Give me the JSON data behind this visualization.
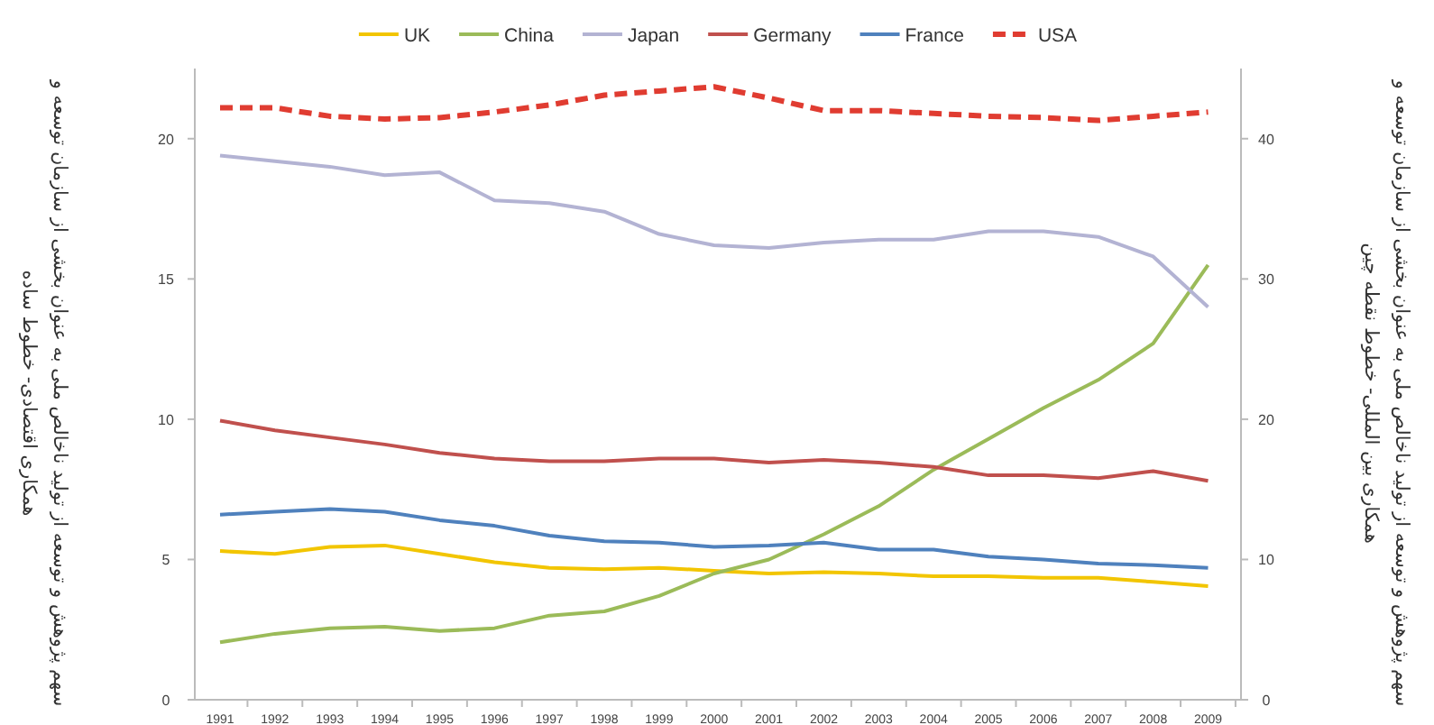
{
  "chart_data": {
    "type": "line",
    "ylabel": "سهم پژوهش و توسعه از تولید ناخالص ملی به عنوان بخشی از سازمان توسعه و همکاری اقتصادی- خطوط ساده",
    "y2label": "سهم پژوهش و توسعه از تولید ناخالص ملی به عنوان بخشی از سازمان توسعه و همکاری بین المللی- خطوط نقطه چین",
    "categories": [
      "1991",
      "1992",
      "1993",
      "1994",
      "1995",
      "1996",
      "1997",
      "1998",
      "1999",
      "2000",
      "2001",
      "2002",
      "2003",
      "2004",
      "2005",
      "2006",
      "2007",
      "2008",
      "2009"
    ],
    "ylim": [
      0,
      22.5
    ],
    "yticks": [
      0,
      5,
      10,
      15,
      20
    ],
    "y2lim": [
      0,
      45
    ],
    "y2ticks": [
      0,
      10,
      20,
      30,
      40
    ],
    "legend": "top",
    "grid": false,
    "marker": "none",
    "series": [
      {
        "name": "UK",
        "color": "#f2c500",
        "values": [
          5.3,
          5.2,
          5.45,
          5.5,
          5.2,
          4.9,
          4.7,
          4.65,
          4.7,
          4.6,
          4.5,
          4.55,
          4.5,
          4.4,
          4.4,
          4.35,
          4.35,
          4.2,
          4.05
        ]
      },
      {
        "name": "China",
        "color": "#9bbb59",
        "values": [
          2.05,
          2.35,
          2.55,
          2.6,
          2.45,
          2.55,
          3.0,
          3.15,
          3.7,
          4.5,
          5.0,
          5.9,
          6.9,
          8.2,
          9.3,
          10.4,
          11.4,
          12.7,
          15.5
        ]
      },
      {
        "name": "Japan",
        "color": "#b3b3d3",
        "values": [
          19.4,
          19.2,
          19.0,
          18.7,
          18.8,
          17.8,
          17.7,
          17.4,
          16.6,
          16.2,
          16.1,
          16.3,
          16.4,
          16.4,
          16.7,
          16.7,
          16.5,
          15.8,
          14.0
        ]
      },
      {
        "name": "Germany",
        "color": "#c0504d",
        "values": [
          9.95,
          9.6,
          9.35,
          9.1,
          8.8,
          8.6,
          8.5,
          8.5,
          8.6,
          8.6,
          8.45,
          8.55,
          8.45,
          8.3,
          8.0,
          8.0,
          7.9,
          8.15,
          7.8
        ]
      },
      {
        "name": "France",
        "color": "#4f81bd",
        "values": [
          6.6,
          6.7,
          6.8,
          6.7,
          6.4,
          6.2,
          5.85,
          5.65,
          5.6,
          5.45,
          5.5,
          5.6,
          5.35,
          5.35,
          5.1,
          5.0,
          4.85,
          4.8,
          4.7
        ]
      },
      {
        "name": "USA",
        "color": "#e03c31",
        "axis": "y2",
        "line_style": "dashed",
        "values": [
          42.2,
          42.2,
          41.6,
          41.4,
          41.5,
          41.9,
          42.4,
          43.1,
          43.4,
          43.7,
          42.9,
          42.0,
          42.0,
          41.8,
          41.6,
          41.5,
          41.3,
          41.6,
          41.9
        ]
      }
    ]
  }
}
